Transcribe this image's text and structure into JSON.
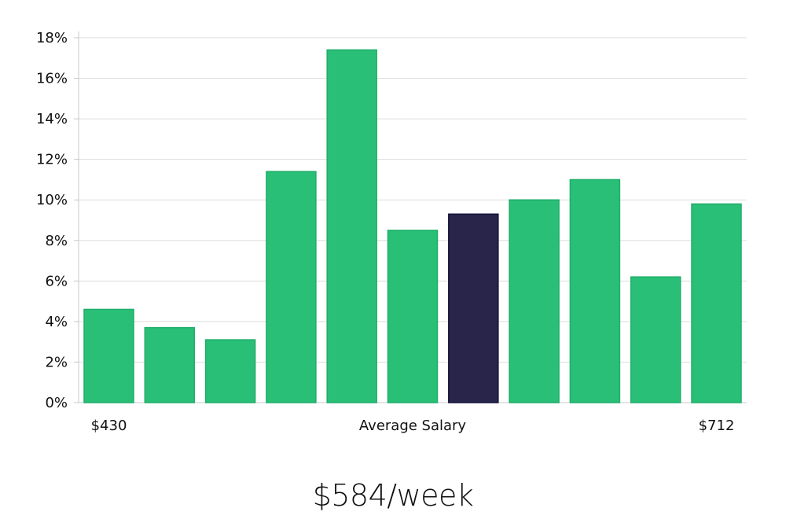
{
  "chart_data": {
    "type": "bar",
    "title": "",
    "xlabel": "Average Salary",
    "ylabel": "",
    "x_min_label": "$430",
    "x_max_label": "$712",
    "ylim": [
      0,
      18
    ],
    "yticks": [
      0,
      2,
      4,
      6,
      8,
      10,
      12,
      14,
      16,
      18
    ],
    "ytick_labels": [
      "0%",
      "2%",
      "4%",
      "6%",
      "8%",
      "10%",
      "12%",
      "14%",
      "16%",
      "18%"
    ],
    "grid": true,
    "values": [
      4.6,
      3.7,
      3.1,
      11.4,
      17.4,
      8.5,
      9.3,
      10.0,
      11.0,
      6.2,
      9.8
    ],
    "highlight_index": 6,
    "colors": {
      "bar": "#2abf77",
      "bar_border": "#1fae69",
      "highlight": "#29254a",
      "highlight_border": "#14123a",
      "grid": "#dddddd",
      "axis": "#c8c8c8"
    }
  },
  "summary": {
    "average_value": "$584/week"
  }
}
